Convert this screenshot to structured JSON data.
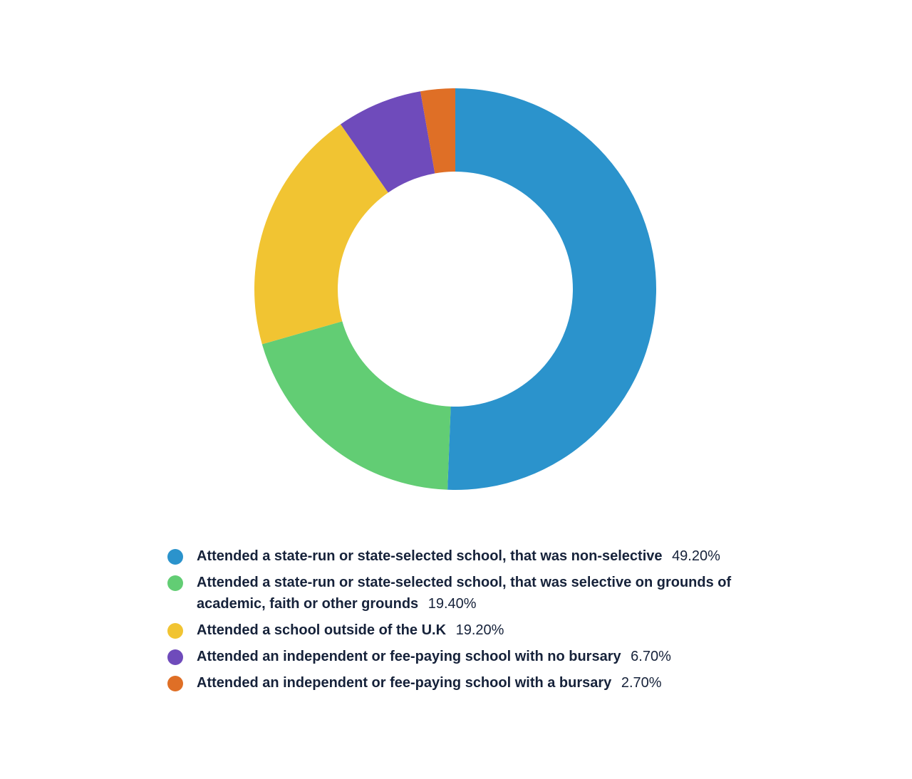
{
  "chart_data": {
    "type": "pie",
    "variant": "donut",
    "title": "",
    "legend_position": "bottom",
    "categories": [
      "Attended a state-run or state-selected school, that was non-selective",
      "Attended a state-run or state-selected school, that was selective on grounds of academic, faith or other grounds",
      "Attended a school outside of the U.K",
      "Attended an independent or fee-paying school with no bursary",
      "Attended an independent or fee-paying school with a bursary"
    ],
    "values": [
      49.2,
      19.4,
      19.2,
      6.7,
      2.7
    ],
    "value_labels": [
      "49.20%",
      "19.40%",
      "19.20%",
      "6.70%",
      "2.70%"
    ],
    "colors": [
      "#2b93cc",
      "#62cd74",
      "#f1c432",
      "#6f4bbb",
      "#df6f26"
    ]
  }
}
